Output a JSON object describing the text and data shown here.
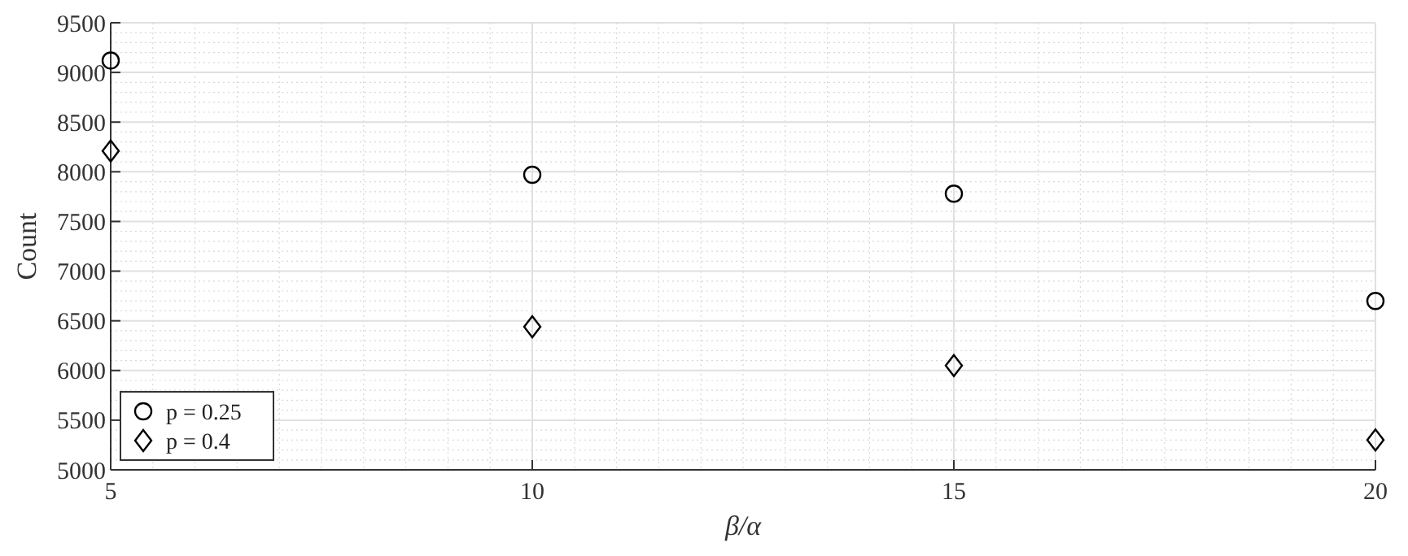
{
  "chart_data": {
    "type": "scatter",
    "xlabel": "β/α",
    "ylabel": "Count",
    "xlim": [
      5,
      20
    ],
    "xticks": [
      5,
      10,
      15,
      20
    ],
    "ylim": [
      5000,
      9500
    ],
    "yticks": [
      5000,
      5500,
      6000,
      6500,
      7000,
      7500,
      8000,
      8500,
      9000,
      9500
    ],
    "grid": true,
    "legend": "bottom left",
    "x": [
      5,
      10,
      15,
      20
    ],
    "series": [
      {
        "name": "p = 0.25",
        "color": "#000000",
        "marker": "circle",
        "values": [
          9120,
          7970,
          7780,
          6700
        ]
      },
      {
        "name": "p = 0.4",
        "color": "#000000",
        "marker": "diamond",
        "values": [
          8210,
          6440,
          6050,
          5300
        ]
      }
    ]
  }
}
